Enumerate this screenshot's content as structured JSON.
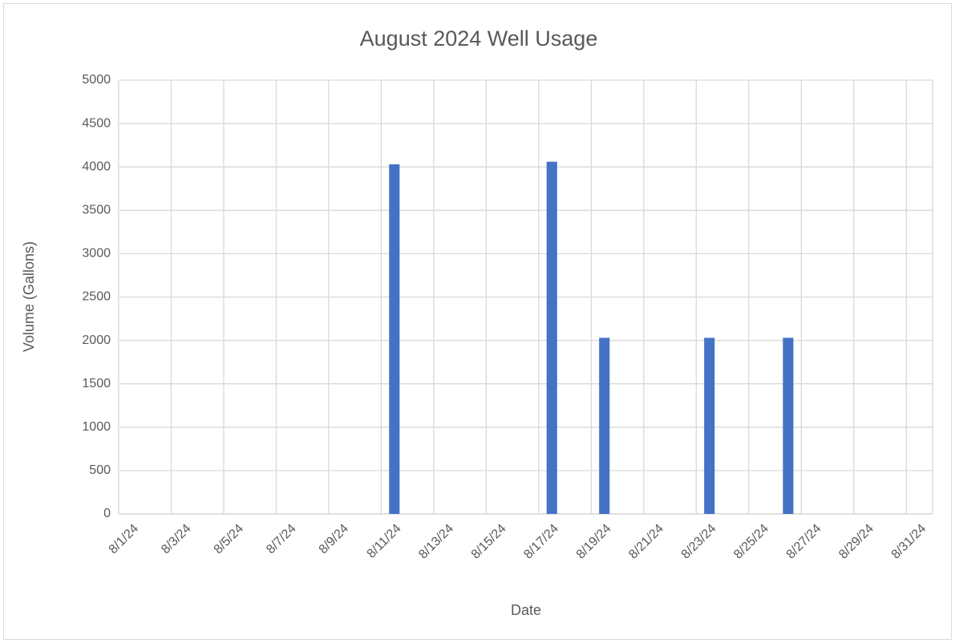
{
  "chart_data": {
    "type": "bar",
    "title": "August 2024 Well Usage",
    "x_label": "Date",
    "y_label": "Volume (Gallons)",
    "categories": [
      "8/1/24",
      null,
      "8/3/24",
      null,
      "8/5/24",
      null,
      "8/7/24",
      null,
      "8/9/24",
      null,
      "8/11/24",
      null,
      "8/13/24",
      null,
      "8/15/24",
      null,
      "8/17/24",
      null,
      "8/19/24",
      null,
      "8/21/24",
      null,
      "8/23/24",
      null,
      "8/25/24",
      null,
      "8/27/24",
      null,
      "8/29/24",
      null,
      "8/31/24"
    ],
    "values": [
      null,
      null,
      null,
      null,
      null,
      null,
      null,
      null,
      null,
      null,
      4030,
      null,
      null,
      null,
      null,
      null,
      4060,
      null,
      2030,
      null,
      null,
      null,
      2030,
      null,
      null,
      2030,
      null,
      null,
      null,
      null,
      null
    ],
    "color": "#4472c4",
    "ylim": [
      0,
      5000
    ],
    "yticks": [
      0,
      500,
      1000,
      1500,
      2000,
      2500,
      3000,
      3500,
      4000,
      4500,
      5000
    ],
    "grid": true
  }
}
